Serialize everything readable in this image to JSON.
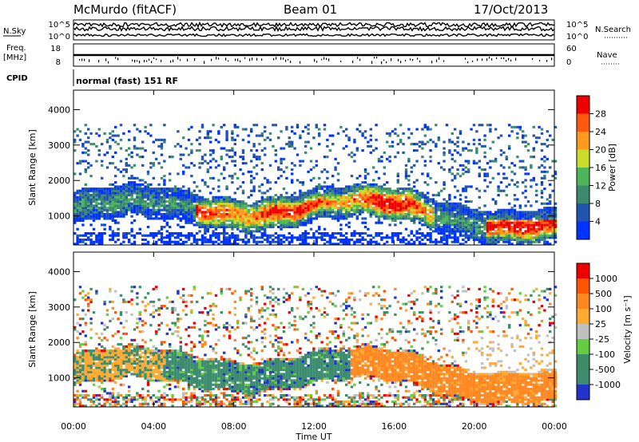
{
  "header": {
    "station": "McMurdo (fitACF)",
    "beam": "Beam 01",
    "date": "17/Oct/2013"
  },
  "strips": {
    "nsky_label": "N.Sky",
    "nsky_ticks": [
      "10^5",
      "10^0"
    ],
    "nsearch_label": "N.Search",
    "nsearch_ticks": [
      "10^5",
      "10^0"
    ],
    "freq_label_1": "Freq.",
    "freq_label_2": "[MHz]",
    "freq_ticks": [
      "18",
      "8"
    ],
    "nave_label": "Nave",
    "nave_ticks": [
      "60",
      "0"
    ],
    "cpid_label": "CPID",
    "cpid_text": "normal (fast) 151 RF"
  },
  "chart_data": [
    {
      "type": "heatmap",
      "panel": "power",
      "xlabel": "Time UT",
      "ylabel": "Slant Range [km]",
      "x_ticks": [
        "00:00",
        "04:00",
        "08:00",
        "12:00",
        "16:00",
        "20:00",
        "00:00"
      ],
      "xlim_hours": [
        0,
        24
      ],
      "y_ticks": [
        1000,
        2000,
        3000,
        4000
      ],
      "ylim": [
        180,
        4550
      ],
      "colorbar_label": "Power [dB]",
      "colorbar_ticks": [
        4,
        8,
        12,
        16,
        20,
        24,
        28
      ],
      "colorbar_range": [
        0,
        32
      ],
      "colors": [
        "#0033ff",
        "#2255b0",
        "#3c8a6e",
        "#4fb55a",
        "#c8dc28",
        "#ff9a1e",
        "#ff5a10",
        "#ee0000"
      ]
    },
    {
      "type": "heatmap",
      "panel": "velocity",
      "xlabel": "Time UT",
      "ylabel": "Slant Range [km]",
      "x_ticks": [
        "00:00",
        "04:00",
        "08:00",
        "12:00",
        "16:00",
        "20:00",
        "00:00"
      ],
      "xlim_hours": [
        0,
        24
      ],
      "y_ticks": [
        1000,
        2000,
        3000,
        4000
      ],
      "ylim": [
        180,
        4550
      ],
      "colorbar_label": "Velocity [m s⁻¹]",
      "colorbar_ticks": [
        "1000",
        "500",
        "100",
        "25",
        "-25",
        "-100",
        "-500",
        "-1000"
      ],
      "colors": [
        "#2233cc",
        "#3d8c70",
        "#3c8c68",
        "#66cc44",
        "#c0c0c0",
        "#ffaa33",
        "#ff8822",
        "#ff5500",
        "#ee0000"
      ]
    }
  ]
}
